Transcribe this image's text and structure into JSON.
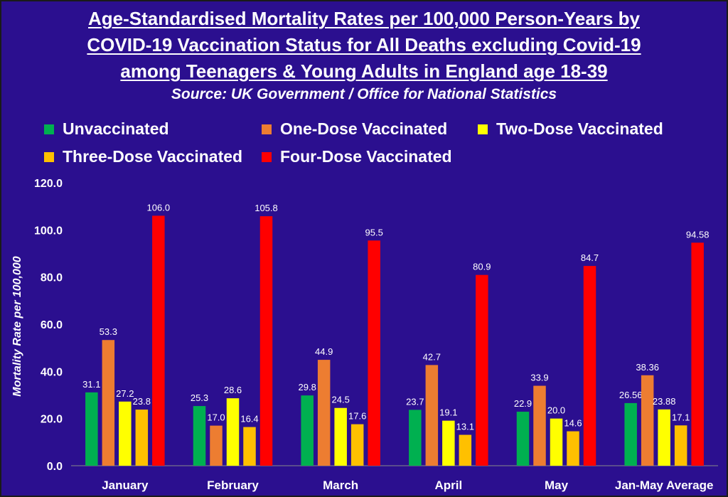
{
  "chart_data": {
    "type": "bar",
    "title_lines": [
      "Age-Standardised Mortality Rates per 100,000 Person-Years by",
      "COVID-19 Vaccination Status for All Deaths excluding Covid-19",
      "among Teenagers & Young Adults in England age 18-39"
    ],
    "subtitle": "Source: UK Government / Office for National Statistics",
    "ylabel": "Mortality Rate per 100,000",
    "xlabel": "",
    "ylim": [
      0,
      120
    ],
    "yticks": [
      "0.0",
      "20.0",
      "40.0",
      "60.0",
      "80.0",
      "100.0",
      "120.0"
    ],
    "grid": false,
    "legend_position": "top",
    "categories": [
      "January",
      "February",
      "March",
      "April",
      "May",
      "Jan-May Average"
    ],
    "series": [
      {
        "name": "Unvaccinated",
        "color": "#00B050",
        "values": [
          31.1,
          25.3,
          29.8,
          23.7,
          22.9,
          26.56
        ],
        "labels": [
          "31.1",
          "25.3",
          "29.8",
          "23.7",
          "22.9",
          "26.56"
        ]
      },
      {
        "name": "One-Dose Vaccinated",
        "color": "#ED7D31",
        "values": [
          53.3,
          17.0,
          44.9,
          42.7,
          33.9,
          38.36
        ],
        "labels": [
          "53.3",
          "17.0",
          "44.9",
          "42.7",
          "33.9",
          "38.36"
        ]
      },
      {
        "name": "Two-Dose Vaccinated",
        "color": "#FFFF00",
        "values": [
          27.2,
          28.6,
          24.5,
          19.1,
          20.0,
          23.88
        ],
        "labels": [
          "27.2",
          "28.6",
          "24.5",
          "19.1",
          "20.0",
          "23.88"
        ]
      },
      {
        "name": "Three-Dose Vaccinated",
        "color": "#FFC000",
        "values": [
          23.8,
          16.4,
          17.6,
          13.1,
          14.6,
          17.1
        ],
        "labels": [
          "23.8",
          "16.4",
          "17.6",
          "13.1",
          "14.6",
          "17.1"
        ]
      },
      {
        "name": "Four-Dose Vaccinated",
        "color": "#FF0000",
        "values": [
          106.0,
          105.8,
          95.5,
          80.9,
          84.7,
          94.58
        ],
        "labels": [
          "106.0",
          "105.8",
          "95.5",
          "80.9",
          "84.7",
          "94.58"
        ]
      }
    ]
  }
}
